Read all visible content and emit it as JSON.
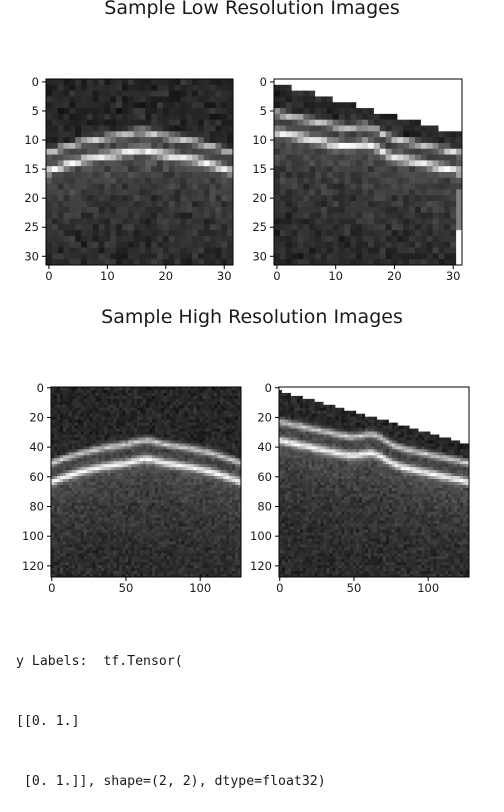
{
  "figure": {
    "low_res_title": "Sample Low Resolution Images",
    "high_res_title": "Sample High Resolution Images"
  },
  "chart_data": [
    {
      "type": "heatmap",
      "title": "Sample Low Resolution Images",
      "xlim": [
        0,
        31
      ],
      "ylim": [
        31,
        0
      ],
      "x_ticks": [
        "0",
        "10",
        "20",
        "30"
      ],
      "y_ticks": [
        "0",
        "5",
        "10",
        "15",
        "20",
        "25",
        "30"
      ],
      "colormap": "gray"
    },
    {
      "type": "heatmap",
      "title": "Sample Low Resolution Images",
      "xlim": [
        0,
        31
      ],
      "ylim": [
        31,
        0
      ],
      "x_ticks": [
        "0",
        "10",
        "20",
        "30"
      ],
      "y_ticks": [
        "0",
        "5",
        "10",
        "15",
        "20",
        "25",
        "30"
      ],
      "colormap": "gray"
    },
    {
      "type": "heatmap",
      "title": "Sample High Resolution Images",
      "xlim": [
        0,
        127
      ],
      "ylim": [
        127,
        0
      ],
      "x_ticks": [
        "0",
        "50",
        "100"
      ],
      "y_ticks": [
        "0",
        "20",
        "40",
        "60",
        "80",
        "100",
        "120"
      ],
      "colormap": "gray"
    },
    {
      "type": "heatmap",
      "title": "Sample High Resolution Images",
      "xlim": [
        0,
        127
      ],
      "ylim": [
        127,
        0
      ],
      "x_ticks": [
        "0",
        "50",
        "100"
      ],
      "y_ticks": [
        "0",
        "20",
        "40",
        "60",
        "80",
        "100",
        "120"
      ],
      "colormap": "gray"
    }
  ],
  "output": {
    "lines": [
      "y Labels:  tf.Tensor(",
      "[[0. 1.]",
      " [0. 1.]], shape=(2, 2), dtype=float32)"
    ]
  }
}
